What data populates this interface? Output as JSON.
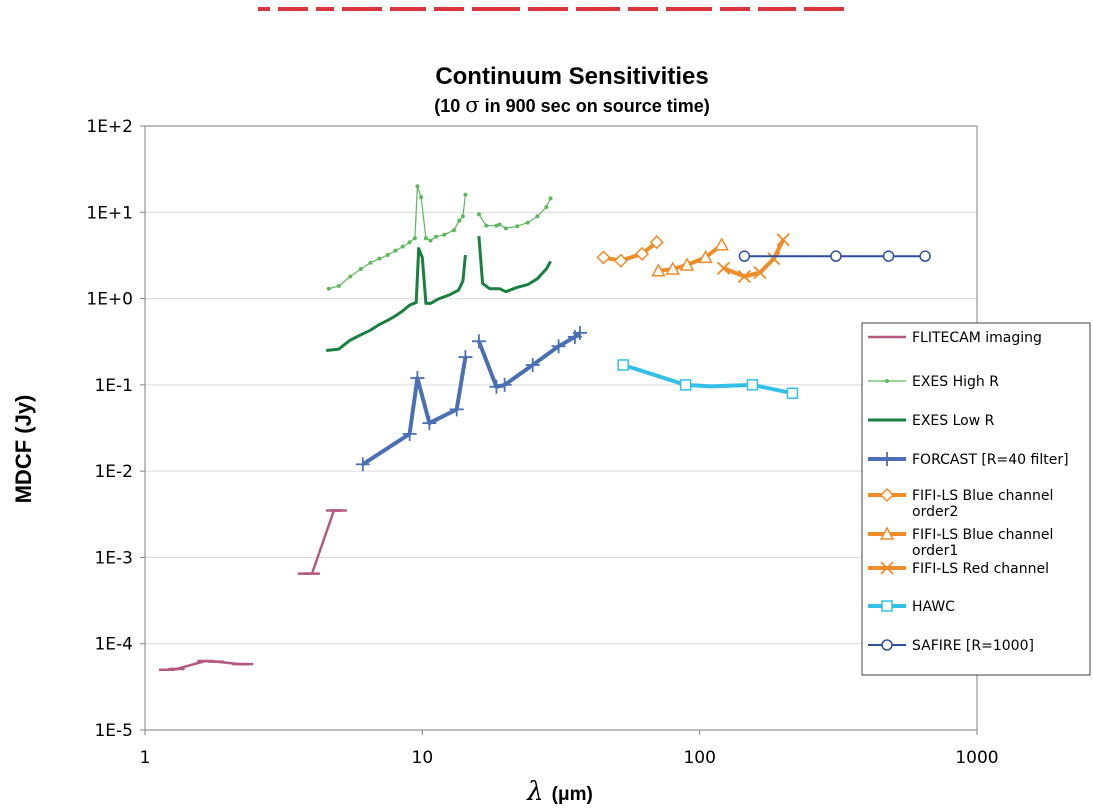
{
  "colors": {
    "flitecam": "#b35a83",
    "exes_high": "#5cb85c",
    "exes_low": "#1a8040",
    "forcast": "#4a6fb5",
    "fifi": "#f08c28",
    "hawc": "#33c0e8",
    "safire": "#2e4f9e",
    "top_banner": "#d9363e"
  },
  "chart_data": {
    "type": "line",
    "title": "Continuum Sensitivities",
    "subtitle_prefix": "(10 ",
    "subtitle_sigma": "σ",
    "subtitle_suffix": " in 900 sec on source time)",
    "xlabel_symbol": "λ",
    "xlabel_units": "(μm)",
    "ylabel": "MDCF (Jy)",
    "xscale": "log",
    "yscale": "log",
    "xlim": [
      1,
      1000
    ],
    "ylim": [
      1e-05,
      100
    ],
    "grid": "horizontal",
    "legend_position": "right",
    "x_tick_labels": [
      {
        "v": 1,
        "label": "1"
      },
      {
        "v": 10,
        "label": "10"
      },
      {
        "v": 100,
        "label": "100"
      },
      {
        "v": 1000,
        "label": "1000"
      }
    ],
    "y_tick_labels": [
      {
        "v": 100,
        "label": "1E+2"
      },
      {
        "v": 10,
        "label": "1E+1"
      },
      {
        "v": 1,
        "label": "1E+0"
      },
      {
        "v": 0.1,
        "label": "1E-1"
      },
      {
        "v": 0.01,
        "label": "1E-2"
      },
      {
        "v": 0.001,
        "label": "1E-3"
      },
      {
        "v": 0.0001,
        "label": "1E-4"
      },
      {
        "v": 1e-05,
        "label": "1E-5"
      }
    ],
    "series": [
      {
        "name": "FLITECAM imaging",
        "color_key": "flitecam",
        "marker": "dash",
        "width": 2.5,
        "segments": [
          [
            [
              1.2,
              5e-05
            ],
            [
              1.3,
              5.1e-05
            ],
            [
              1.65,
              6.3e-05
            ],
            [
              1.8,
              6.2e-05
            ],
            [
              2.2,
              5.8e-05
            ],
            [
              2.3,
              5.8e-05
            ]
          ],
          [
            [
              3.8,
              0.00065
            ],
            [
              4.0,
              0.00065
            ],
            [
              4.8,
              0.0035
            ],
            [
              5.0,
              0.0035
            ]
          ]
        ],
        "show_markers": true
      },
      {
        "name": "EXES High R",
        "color_key": "exes_high",
        "marker": "dot",
        "width": 1.2,
        "segments": [
          [
            [
              4.6,
              1.3
            ],
            [
              5.0,
              1.4
            ],
            [
              5.5,
              1.8
            ],
            [
              6.0,
              2.2
            ],
            [
              6.5,
              2.6
            ],
            [
              7.0,
              2.9
            ],
            [
              7.5,
              3.2
            ],
            [
              8.0,
              3.6
            ],
            [
              8.5,
              4.0
            ],
            [
              9.0,
              4.5
            ],
            [
              9.4,
              5.0
            ],
            [
              9.6,
              20
            ],
            [
              9.9,
              15
            ],
            [
              10.3,
              5.0
            ],
            [
              10.7,
              4.7
            ],
            [
              11.2,
              5.2
            ],
            [
              12.0,
              5.5
            ],
            [
              13.0,
              6.2
            ],
            [
              13.6,
              8.0
            ],
            [
              14.0,
              9.0
            ],
            [
              14.3,
              16
            ]
          ],
          [
            [
              16.0,
              9.5
            ],
            [
              17.0,
              7.0
            ],
            [
              18.5,
              7.0
            ],
            [
              19.0,
              7.2
            ],
            [
              20.0,
              6.5
            ],
            [
              22.0,
              6.9
            ],
            [
              24.0,
              7.6
            ],
            [
              26.0,
              9.0
            ],
            [
              28.0,
              11.5
            ],
            [
              29.0,
              14.5
            ]
          ]
        ],
        "show_markers": true
      },
      {
        "name": "EXES Low R",
        "color_key": "exes_low",
        "marker": "none",
        "width": 3,
        "segments": [
          [
            [
              4.5,
              0.25
            ],
            [
              5.0,
              0.26
            ],
            [
              5.5,
              0.33
            ],
            [
              6.0,
              0.38
            ],
            [
              6.5,
              0.43
            ],
            [
              7.0,
              0.5
            ],
            [
              7.5,
              0.56
            ],
            [
              8.0,
              0.63
            ],
            [
              8.5,
              0.72
            ],
            [
              9.0,
              0.84
            ],
            [
              9.5,
              0.9
            ],
            [
              9.7,
              3.8
            ],
            [
              10.0,
              3.0
            ],
            [
              10.3,
              0.88
            ],
            [
              10.7,
              0.88
            ],
            [
              11.5,
              1.0
            ],
            [
              12.5,
              1.1
            ],
            [
              13.5,
              1.25
            ],
            [
              14.0,
              1.6
            ],
            [
              14.3,
              3.2
            ]
          ],
          [
            [
              16.0,
              5.3
            ],
            [
              16.5,
              1.5
            ],
            [
              17.5,
              1.3
            ],
            [
              19.0,
              1.3
            ],
            [
              20.0,
              1.2
            ],
            [
              22.0,
              1.35
            ],
            [
              24.0,
              1.45
            ],
            [
              26.0,
              1.7
            ],
            [
              28.0,
              2.2
            ],
            [
              29.0,
              2.7
            ]
          ]
        ],
        "show_markers": false
      },
      {
        "name": "FORCAST [R=40 filter]",
        "color_key": "forcast",
        "marker": "plus",
        "width": 4,
        "segments": [
          [
            [
              6.1,
              0.012
            ],
            [
              9.0,
              0.027
            ],
            [
              9.6,
              0.12
            ],
            [
              10.6,
              0.036
            ],
            [
              13.3,
              0.052
            ],
            [
              14.3,
              0.21
            ]
          ],
          [
            [
              16.0,
              0.32
            ],
            [
              18.5,
              0.095
            ],
            [
              19.8,
              0.1
            ],
            [
              25.0,
              0.17
            ],
            [
              31.0,
              0.28
            ],
            [
              35.5,
              0.36
            ],
            [
              37.0,
              0.4
            ]
          ]
        ],
        "show_markers": true
      },
      {
        "name": "FIFI-LS Blue channel order2",
        "legend_lines": [
          "FIFI-LS Blue channel",
          "order2"
        ],
        "color_key": "fifi",
        "marker": "diamond",
        "width": 4,
        "segments": [
          [
            [
              45,
              3.0
            ],
            [
              52,
              2.75
            ],
            [
              62,
              3.3
            ],
            [
              70,
              4.5
            ]
          ]
        ],
        "show_markers": true
      },
      {
        "name": "FIFI-LS Blue channel order1",
        "legend_lines": [
          "FIFI-LS Blue channel",
          "order1"
        ],
        "color_key": "fifi",
        "marker": "triangle",
        "width": 4,
        "segments": [
          [
            [
              71,
              2.1
            ],
            [
              80,
              2.2
            ],
            [
              90,
              2.45
            ],
            [
              105,
              3.0
            ],
            [
              120,
              4.2
            ]
          ]
        ],
        "show_markers": true
      },
      {
        "name": "FIFI-LS Red channel",
        "color_key": "fifi",
        "marker": "x",
        "width": 4,
        "segments": [
          [
            [
              122,
              2.25
            ],
            [
              145,
              1.8
            ],
            [
              165,
              2.0
            ],
            [
              185,
              2.9
            ],
            [
              200,
              4.8
            ]
          ]
        ],
        "show_markers": true
      },
      {
        "name": "HAWC",
        "color_key": "hawc",
        "marker": "square",
        "width": 4,
        "segments": [
          [
            [
              53,
              0.17
            ],
            [
              89,
              0.1
            ],
            [
              110,
              0.096
            ],
            [
              155,
              0.1
            ],
            [
              216,
              0.08
            ]
          ]
        ],
        "show_markers": true,
        "marker_points": [
          [
            53,
            0.17
          ],
          [
            89,
            0.1
          ],
          [
            155,
            0.1
          ],
          [
            216,
            0.08
          ]
        ]
      },
      {
        "name": "SAFIRE [R=1000]",
        "color_key": "safire",
        "marker": "circle",
        "width": 2,
        "segments": [
          [
            [
              145,
              3.1
            ],
            [
              310,
              3.1
            ],
            [
              480,
              3.1
            ],
            [
              650,
              3.1
            ]
          ]
        ],
        "show_markers": true
      }
    ]
  }
}
